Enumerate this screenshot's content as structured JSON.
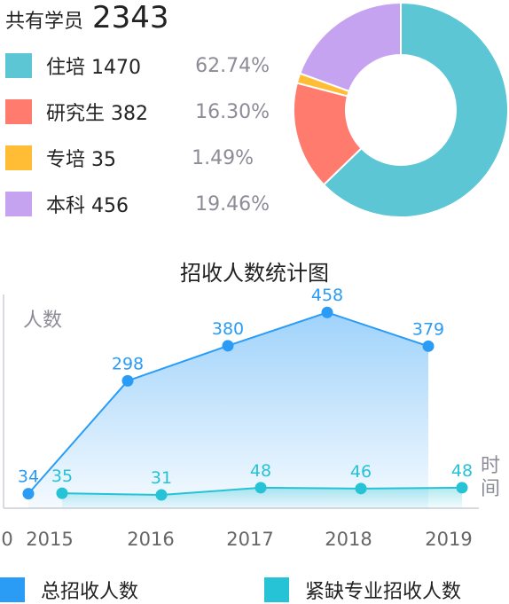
{
  "summary": {
    "total_label": "共有学员",
    "total_value": "2343"
  },
  "pie_legend": [
    {
      "name": "住培",
      "count": "1470",
      "pct": "62.74%",
      "color": "#5cc6d4"
    },
    {
      "name": "研究生",
      "count": "382",
      "pct": "16.30%",
      "color": "#ff7b6e"
    },
    {
      "name": "专培",
      "count": "35",
      "pct": "1.49%",
      "color": "#ffbc35"
    },
    {
      "name": "本科",
      "count": "456",
      "pct": "19.46%",
      "color": "#c6a3f0"
    }
  ],
  "chart_data": [
    {
      "type": "pie",
      "categories": [
        "住培",
        "研究生",
        "专培",
        "本科"
      ],
      "values": [
        1470,
        382,
        35,
        456
      ],
      "colors": [
        "#5cc6d4",
        "#ff7b6e",
        "#ffbc35",
        "#c6a3f0"
      ],
      "donut": true
    },
    {
      "type": "line",
      "title": "招收人数统计图",
      "ylabel": "人数",
      "xlabel": "时间",
      "x": [
        "2015",
        "2016",
        "2017",
        "2018",
        "2019"
      ],
      "x_axis_origin_label": "0",
      "series": [
        {
          "name": "总招收人数",
          "values": [
            34,
            298,
            380,
            458,
            379
          ],
          "color": "#2a9cf5",
          "area": true
        },
        {
          "name": "紧缺专业招收人数",
          "values": [
            35,
            31,
            48,
            46,
            48
          ],
          "color": "#26c2d6",
          "area": true
        }
      ],
      "ylim": [
        0,
        500
      ],
      "grid": false,
      "legend": "bottom"
    }
  ]
}
